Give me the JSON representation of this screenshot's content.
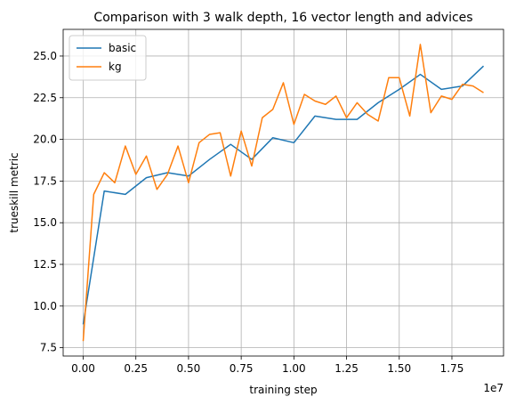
{
  "chart_data": {
    "type": "line",
    "title": "Comparison with 3 walk depth, 16 vector length and advices",
    "xlabel": "training step",
    "ylabel": "trueskill metric",
    "x_scale_label": "1e7",
    "xlim": [
      -0.095,
      1.995
    ],
    "ylim": [
      7.0,
      26.6
    ],
    "x_ticks": [
      0.0,
      0.25,
      0.5,
      0.75,
      1.0,
      1.25,
      1.5,
      1.75
    ],
    "x_tick_labels": [
      "0.00",
      "0.25",
      "0.50",
      "0.75",
      "1.00",
      "1.25",
      "1.50",
      "1.75"
    ],
    "y_ticks": [
      7.5,
      10.0,
      12.5,
      15.0,
      17.5,
      20.0,
      22.5,
      25.0
    ],
    "y_tick_labels": [
      "7.5",
      "10.0",
      "12.5",
      "15.0",
      "17.5",
      "20.0",
      "22.5",
      "25.0"
    ],
    "grid": true,
    "legend_position": "upper-left",
    "series": [
      {
        "name": "basic",
        "color": "#1f77b4",
        "x": [
          0.0,
          0.1,
          0.2,
          0.3,
          0.4,
          0.5,
          0.6,
          0.7,
          0.8,
          0.9,
          1.0,
          1.1,
          1.2,
          1.3,
          1.4,
          1.5,
          1.6,
          1.7,
          1.8,
          1.9
        ],
        "y": [
          8.9,
          16.9,
          16.7,
          17.7,
          18.0,
          17.8,
          18.8,
          19.7,
          18.8,
          20.1,
          19.8,
          21.4,
          21.2,
          21.2,
          22.2,
          23.0,
          23.9,
          23.0,
          23.2,
          24.4
        ]
      },
      {
        "name": "kg",
        "color": "#ff7f0e",
        "x": [
          0.0,
          0.05,
          0.1,
          0.15,
          0.2,
          0.25,
          0.3,
          0.35,
          0.4,
          0.45,
          0.5,
          0.55,
          0.6,
          0.65,
          0.7,
          0.75,
          0.8,
          0.85,
          0.9,
          0.95,
          1.0,
          1.05,
          1.1,
          1.15,
          1.2,
          1.25,
          1.3,
          1.35,
          1.4,
          1.45,
          1.5,
          1.55,
          1.6,
          1.65,
          1.7,
          1.75,
          1.8,
          1.85,
          1.9
        ],
        "y": [
          7.9,
          16.7,
          18.0,
          17.4,
          19.6,
          17.9,
          19.0,
          17.0,
          17.9,
          19.6,
          17.4,
          19.8,
          20.3,
          20.4,
          17.8,
          20.5,
          18.4,
          21.3,
          21.8,
          23.4,
          20.9,
          22.7,
          22.3,
          22.1,
          22.6,
          21.3,
          22.2,
          21.5,
          21.1,
          23.7,
          23.7,
          21.4,
          25.7,
          21.6,
          22.6,
          22.4,
          23.3,
          23.2,
          22.8
        ]
      }
    ]
  }
}
